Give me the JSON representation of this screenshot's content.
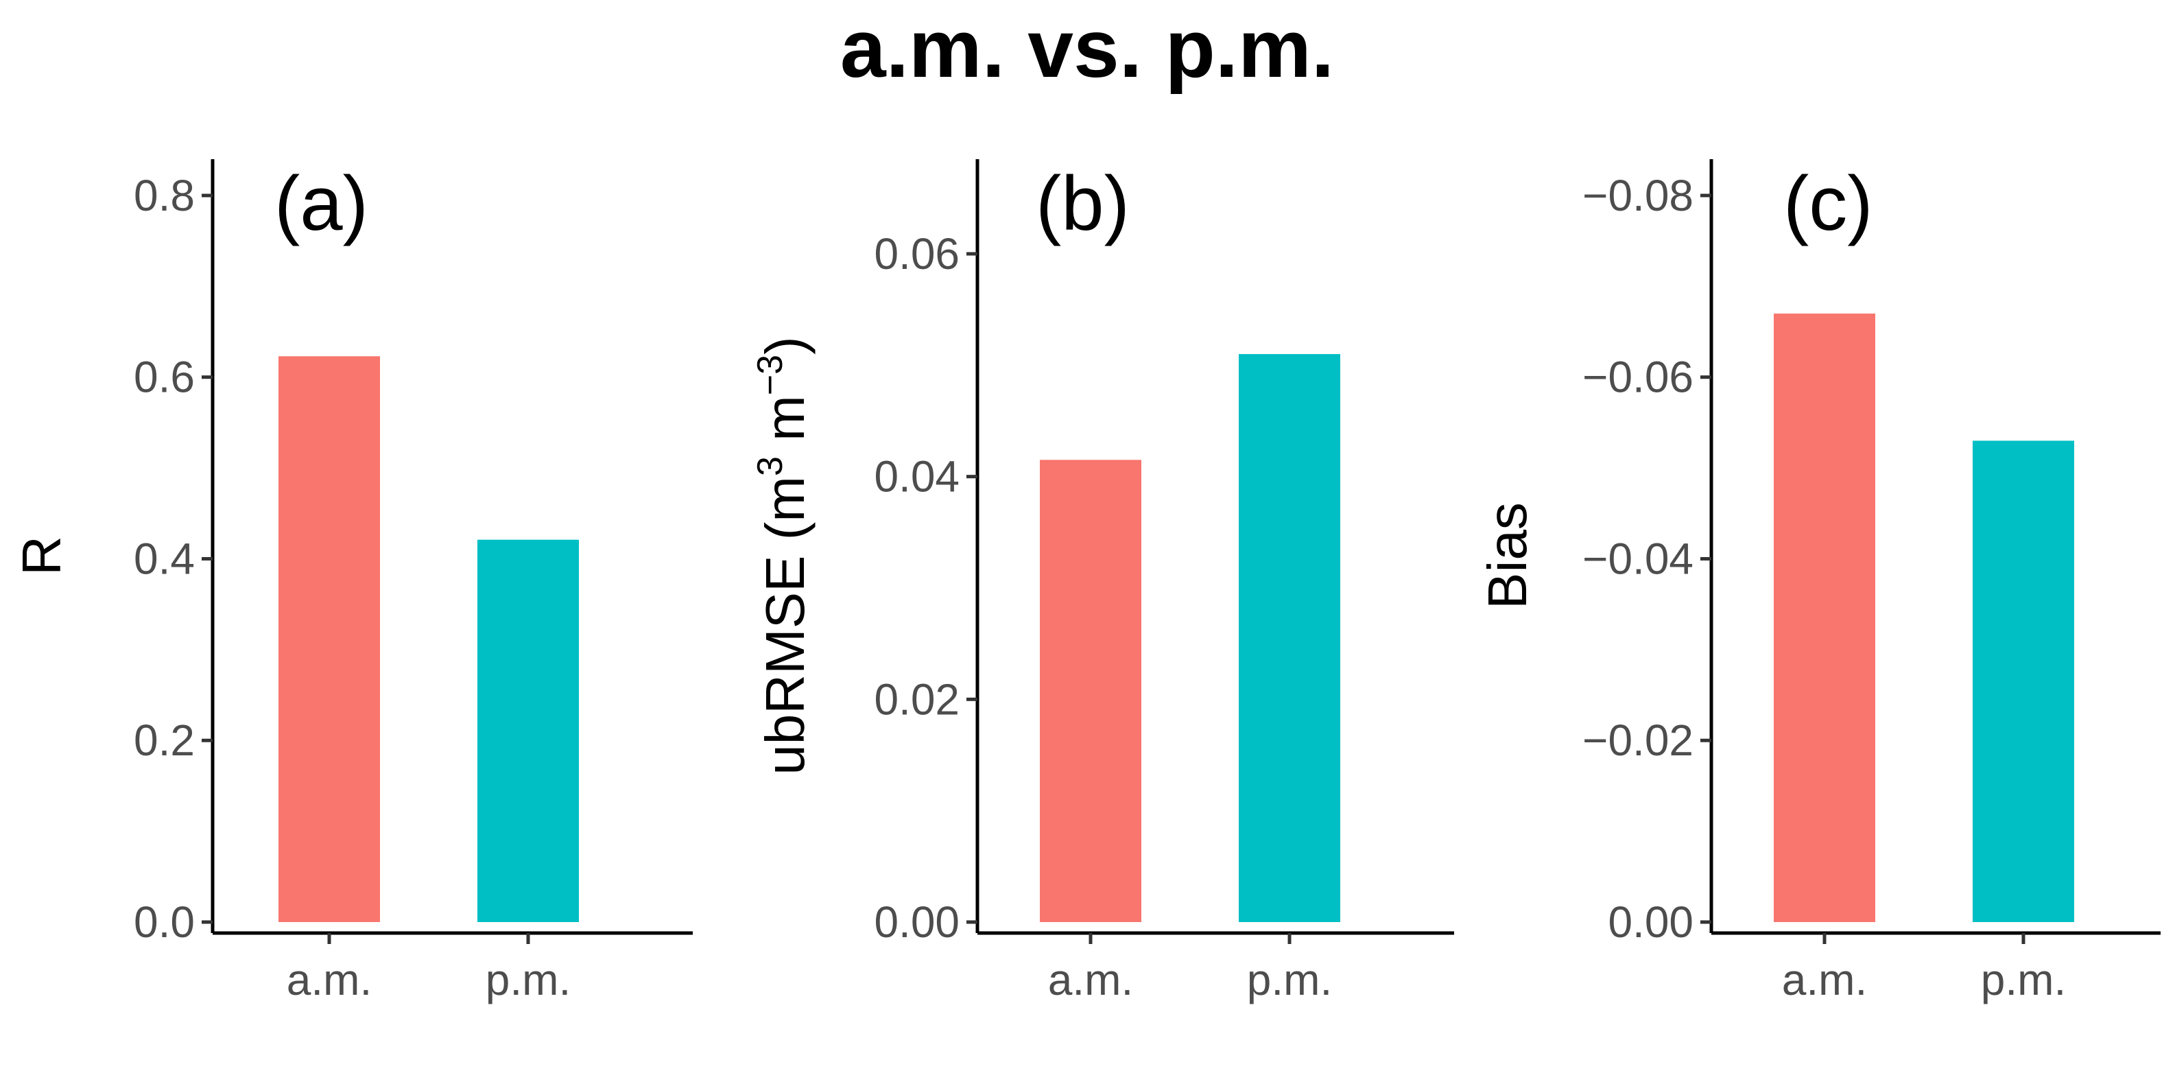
{
  "title": "a.m. vs. p.m.",
  "chart_data": [
    {
      "type": "bar",
      "panel_label": "(a)",
      "categories": [
        "a.m.",
        "p.m."
      ],
      "values": [
        0.623,
        0.421
      ],
      "colors": [
        "#F8766D",
        "#00BFC4"
      ],
      "ylabel": "R",
      "yticks": [
        0.0,
        0.2,
        0.4,
        0.6,
        0.8
      ],
      "ytick_labels": [
        "0.0",
        "0.2",
        "0.4",
        "0.6",
        "0.8"
      ],
      "ylim": [
        0,
        0.84
      ],
      "reverse": false
    },
    {
      "type": "bar",
      "panel_label": "(b)",
      "categories": [
        "a.m.",
        "p.m."
      ],
      "values": [
        0.0415,
        0.051
      ],
      "colors": [
        "#F8766D",
        "#00BFC4"
      ],
      "ylabel": "ubRMSE",
      "ylabel_unit": {
        "open": "(",
        "base1": "m",
        "sup1": "3",
        "base2": " m",
        "sup2": "−3",
        "close": ")"
      },
      "yticks": [
        0.0,
        0.02,
        0.04,
        0.06
      ],
      "ytick_labels": [
        "0.00",
        "0.02",
        "0.04",
        "0.06"
      ],
      "ylim": [
        0,
        0.0685
      ],
      "reverse": false
    },
    {
      "type": "bar",
      "panel_label": "(c)",
      "categories": [
        "a.m.",
        "p.m."
      ],
      "values": [
        -0.067,
        -0.053
      ],
      "colors": [
        "#F8766D",
        "#00BFC4"
      ],
      "ylabel": "Bias",
      "yticks": [
        0.0,
        -0.02,
        -0.04,
        -0.06,
        -0.08
      ],
      "ytick_labels": [
        "0.00",
        "−0.02",
        "−0.04",
        "−0.06",
        "−0.08"
      ],
      "ylim": [
        0,
        -0.084
      ],
      "reverse": true
    }
  ]
}
